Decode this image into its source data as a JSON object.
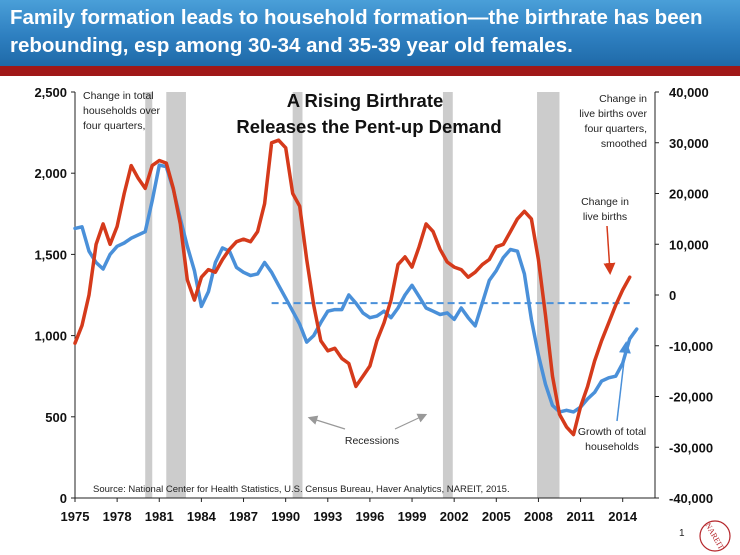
{
  "slide": {
    "title": "Family formation leads to household formation—the birthrate has been rebounding, esp among 30-34 and 35-39 year old females.",
    "page_number": "1"
  },
  "chart_data": {
    "type": "line",
    "title_line1": "A Rising Birthrate",
    "title_line2": "Releases the Pent-up Demand",
    "x_ticks": [
      "1975",
      "1978",
      "1981",
      "1984",
      "1987",
      "1990",
      "1993",
      "1996",
      "1999",
      "2002",
      "2005",
      "2008",
      "2011",
      "2014"
    ],
    "left_axis": {
      "ylim": [
        0,
        2500
      ],
      "ticks": [
        "0",
        "500",
        "1,000",
        "1,500",
        "2,000",
        "2,500"
      ]
    },
    "right_axis": {
      "ylim": [
        -40000,
        40000
      ],
      "ticks": [
        "-40,000",
        "-30,000",
        "-20,000",
        "-10,000",
        "0",
        "10,000",
        "20,000",
        "30,000",
        "40,000"
      ]
    },
    "recessions": [
      [
        1980.0,
        1980.5
      ],
      [
        1981.5,
        1982.9
      ],
      [
        1990.5,
        1991.2
      ],
      [
        2001.2,
        2001.9
      ],
      [
        2007.9,
        2009.5
      ]
    ],
    "series": [
      {
        "name": "Growth of total households",
        "color": "#4a90d9",
        "axis": "left",
        "points": [
          [
            1975,
            1660
          ],
          [
            1975.5,
            1670
          ],
          [
            1976,
            1520
          ],
          [
            1976.5,
            1450
          ],
          [
            1977,
            1410
          ],
          [
            1977.5,
            1500
          ],
          [
            1978,
            1550
          ],
          [
            1978.5,
            1570
          ],
          [
            1979,
            1600
          ],
          [
            1979.5,
            1620
          ],
          [
            1980,
            1640
          ],
          [
            1980.5,
            1830
          ],
          [
            1981,
            2050
          ],
          [
            1981.5,
            2040
          ],
          [
            1982,
            1900
          ],
          [
            1982.5,
            1720
          ],
          [
            1983,
            1550
          ],
          [
            1983.5,
            1400
          ],
          [
            1984,
            1180
          ],
          [
            1984.5,
            1270
          ],
          [
            1985,
            1450
          ],
          [
            1985.5,
            1540
          ],
          [
            1986,
            1520
          ],
          [
            1986.5,
            1420
          ],
          [
            1987,
            1390
          ],
          [
            1987.5,
            1370
          ],
          [
            1988,
            1380
          ],
          [
            1988.5,
            1450
          ],
          [
            1989,
            1390
          ],
          [
            1989.5,
            1310
          ],
          [
            1990,
            1230
          ],
          [
            1990.5,
            1150
          ],
          [
            1991,
            1070
          ],
          [
            1991.5,
            960
          ],
          [
            1992,
            1000
          ],
          [
            1992.5,
            1080
          ],
          [
            1993,
            1150
          ],
          [
            1993.5,
            1160
          ],
          [
            1994,
            1160
          ],
          [
            1994.5,
            1250
          ],
          [
            1995,
            1200
          ],
          [
            1995.5,
            1140
          ],
          [
            1996,
            1110
          ],
          [
            1996.5,
            1120
          ],
          [
            1997,
            1150
          ],
          [
            1997.5,
            1110
          ],
          [
            1998,
            1170
          ],
          [
            1998.5,
            1250
          ],
          [
            1999,
            1310
          ],
          [
            1999.5,
            1240
          ],
          [
            2000,
            1170
          ],
          [
            2000.5,
            1150
          ],
          [
            2001,
            1130
          ],
          [
            2001.5,
            1140
          ],
          [
            2002,
            1100
          ],
          [
            2002.5,
            1170
          ],
          [
            2003,
            1110
          ],
          [
            2003.5,
            1060
          ],
          [
            2004,
            1200
          ],
          [
            2004.5,
            1340
          ],
          [
            2005,
            1400
          ],
          [
            2005.5,
            1480
          ],
          [
            2006,
            1530
          ],
          [
            2006.5,
            1520
          ],
          [
            2007,
            1380
          ],
          [
            2007.5,
            1100
          ],
          [
            2008,
            880
          ],
          [
            2008.5,
            700
          ],
          [
            2009,
            570
          ],
          [
            2009.5,
            530
          ],
          [
            2010,
            540
          ],
          [
            2010.5,
            530
          ],
          [
            2011,
            560
          ],
          [
            2011.5,
            610
          ],
          [
            2012,
            650
          ],
          [
            2012.5,
            720
          ],
          [
            2013,
            740
          ],
          [
            2013.5,
            750
          ],
          [
            2014,
            830
          ],
          [
            2014.5,
            980
          ],
          [
            2015,
            1040
          ]
        ]
      },
      {
        "name": "Change in live births",
        "color": "#d53a1b",
        "axis": "right",
        "points": [
          [
            1975,
            -9500
          ],
          [
            1975.5,
            -6000
          ],
          [
            1976,
            0
          ],
          [
            1976.5,
            10000
          ],
          [
            1977,
            14000
          ],
          [
            1977.5,
            10000
          ],
          [
            1978,
            13500
          ],
          [
            1978.5,
            20000
          ],
          [
            1979,
            25500
          ],
          [
            1979.5,
            23000
          ],
          [
            1980,
            21000
          ],
          [
            1980.5,
            25500
          ],
          [
            1981,
            26500
          ],
          [
            1981.5,
            26000
          ],
          [
            1982,
            21000
          ],
          [
            1982.5,
            14000
          ],
          [
            1983,
            3000
          ],
          [
            1983.5,
            -1000
          ],
          [
            1984,
            3500
          ],
          [
            1984.5,
            5000
          ],
          [
            1985,
            4500
          ],
          [
            1985.5,
            7000
          ],
          [
            1986,
            9000
          ],
          [
            1986.5,
            10500
          ],
          [
            1987,
            11000
          ],
          [
            1987.5,
            10500
          ],
          [
            1988,
            12500
          ],
          [
            1988.5,
            18000
          ],
          [
            1989,
            30000
          ],
          [
            1989.5,
            30500
          ],
          [
            1990,
            29000
          ],
          [
            1990.5,
            20000
          ],
          [
            1991,
            17500
          ],
          [
            1991.5,
            7000
          ],
          [
            1992,
            -2000
          ],
          [
            1992.5,
            -9000
          ],
          [
            1993,
            -11000
          ],
          [
            1993.5,
            -10500
          ],
          [
            1994,
            -12500
          ],
          [
            1994.5,
            -13500
          ],
          [
            1995,
            -18000
          ],
          [
            1995.5,
            -16000
          ],
          [
            1996,
            -14000
          ],
          [
            1996.5,
            -9000
          ],
          [
            1997,
            -5500
          ],
          [
            1997.5,
            -1000
          ],
          [
            1998,
            6000
          ],
          [
            1998.5,
            7500
          ],
          [
            1999,
            5500
          ],
          [
            1999.5,
            9500
          ],
          [
            2000,
            14000
          ],
          [
            2000.5,
            12500
          ],
          [
            2001,
            9000
          ],
          [
            2001.5,
            6500
          ],
          [
            2002,
            5500
          ],
          [
            2002.5,
            5000
          ],
          [
            2003,
            3500
          ],
          [
            2003.5,
            4500
          ],
          [
            2004,
            6000
          ],
          [
            2004.5,
            7000
          ],
          [
            2005,
            9500
          ],
          [
            2005.5,
            10000
          ],
          [
            2006,
            12500
          ],
          [
            2006.5,
            15000
          ],
          [
            2007,
            16500
          ],
          [
            2007.5,
            15000
          ],
          [
            2008,
            7000
          ],
          [
            2008.5,
            -4000
          ],
          [
            2009,
            -16000
          ],
          [
            2009.5,
            -23500
          ],
          [
            2010,
            -26000
          ],
          [
            2010.5,
            -27500
          ],
          [
            2011,
            -22000
          ],
          [
            2011.5,
            -18000
          ],
          [
            2012,
            -13000
          ],
          [
            2012.5,
            -9000
          ],
          [
            2013,
            -5500
          ],
          [
            2013.5,
            -2000
          ],
          [
            2014,
            1000
          ],
          [
            2014.5,
            3500
          ]
        ]
      }
    ],
    "baseline": {
      "color": "#4a90d9",
      "style": "dashed",
      "axis": "left",
      "value": 1200,
      "x_range": [
        1989,
        2014.5
      ]
    },
    "annotations": [
      {
        "text": "Change in total",
        "key": "left_label_1"
      },
      {
        "text": "households over",
        "key": "left_label_2"
      },
      {
        "text": "four quarters,",
        "key": "left_label_3"
      },
      {
        "text": "Change in",
        "key": "right_label_1"
      },
      {
        "text": "live births over",
        "key": "right_label_2"
      },
      {
        "text": "four quarters,",
        "key": "right_label_3"
      },
      {
        "text": "smoothed",
        "key": "right_label_4"
      },
      {
        "text": "Change in",
        "key": "births_label_1"
      },
      {
        "text": "live births",
        "key": "births_label_2"
      },
      {
        "text": "Growth  of total",
        "key": "hh_label_1"
      },
      {
        "text": "households",
        "key": "hh_label_2"
      },
      {
        "text": "Recessions",
        "key": "recessions_label"
      }
    ],
    "source": "Source: National Center for Health Statistics, U.S. Census Bureau, Haver Analytics, NAREIT, 2015."
  },
  "logo": {
    "text": "NAREIT",
    "color": "#b5262b"
  }
}
